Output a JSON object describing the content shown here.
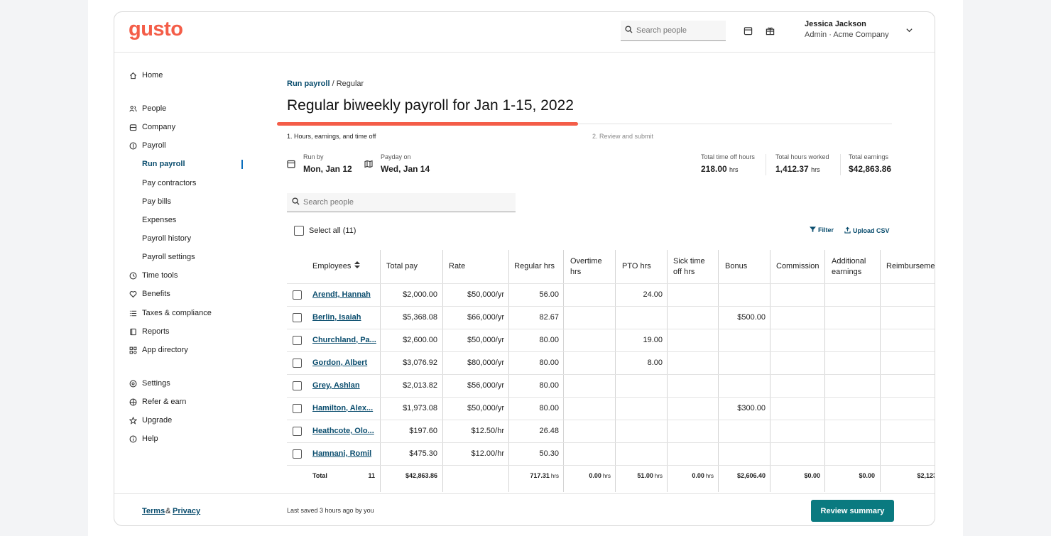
{
  "app": {
    "logo": "gusto"
  },
  "header": {
    "search_placeholder": "Search people",
    "user_name": "Jessica Jackson",
    "user_role": "Admin · Acme Company"
  },
  "sidebar": {
    "home": "Home",
    "people": "People",
    "company": "Company",
    "payroll": "Payroll",
    "payroll_items": [
      "Run payroll",
      "Pay contractors",
      "Pay bills",
      "Expenses",
      "Payroll history",
      "Payroll settings"
    ],
    "time_tools": "Time tools",
    "benefits": "Benefits",
    "taxes": "Taxes & compliance",
    "reports": "Reports",
    "app_directory": "App directory",
    "settings": "Settings",
    "refer": "Refer & earn",
    "upgrade": "Upgrade",
    "help": "Help"
  },
  "breadcrumb": {
    "link": "Run payroll",
    "current": "/ Regular"
  },
  "page_title": "Regular biweekly payroll for Jan 1-15, 2022",
  "progress": {
    "fraction": 0.49
  },
  "steps": [
    "1. Hours, earnings, and time off",
    "2. Review and submit"
  ],
  "meta": {
    "run_by_label": "Run by",
    "run_by_value": "Mon, Jan 12",
    "payday_label": "Payday on",
    "payday_value": "Wed, Jan 14"
  },
  "stats": {
    "time_off_label": "Total time off hours",
    "time_off_value": "218.00",
    "time_off_unit": "hrs",
    "hours_label": "Total hours worked",
    "hours_value": "1,412.37",
    "hours_unit": "hrs",
    "earnings_label": "Total earnings",
    "earnings_value": "$42,863.86"
  },
  "body_search_placeholder": "Search people",
  "select_all": "Select all (11)",
  "filter_label": "Filter",
  "upload_label": "Upload CSV",
  "table": {
    "headers": {
      "employees": "Employees",
      "total_pay": "Total pay",
      "rate": "Rate",
      "regular": "Regular hrs",
      "overtime_1": "Overtime",
      "overtime_2": "hrs",
      "pto": "PTO hrs",
      "sick_1": "Sick time",
      "sick_2": "off hrs",
      "bonus": "Bonus",
      "commission": "Commission",
      "additional_1": "Additional",
      "additional_2": "earnings",
      "reimbursement": "Reimburseme"
    },
    "rows": [
      {
        "name": "Arendt, Hannah",
        "pay": "$2,000.00",
        "rate": "$50,000/yr",
        "regular": "56.00",
        "pto": "24.00",
        "bonus": ""
      },
      {
        "name": "Berlin, Isaiah",
        "pay": "$5,368.08",
        "rate": "$66,000/yr",
        "regular": "82.67",
        "pto": "",
        "bonus": "$500.00"
      },
      {
        "name": "Churchland, Pa...",
        "pay": "$2,600.00",
        "rate": "$50,000/yr",
        "regular": "80.00",
        "pto": "19.00",
        "bonus": ""
      },
      {
        "name": "Gordon, Albert",
        "pay": "$3,076.92",
        "rate": "$80,000/yr",
        "regular": "80.00",
        "pto": "8.00",
        "bonus": ""
      },
      {
        "name": "Grey, Ashlan",
        "pay": "$2,013.82",
        "rate": "$56,000/yr",
        "regular": "80.00",
        "pto": "",
        "bonus": ""
      },
      {
        "name": "Hamilton, Alex...",
        "pay": "$1,973.08",
        "rate": "$50,000/yr",
        "regular": "80.00",
        "pto": "",
        "bonus": "$300.00"
      },
      {
        "name": "Heathcote, Olo...",
        "pay": "$197.60",
        "rate": "$12.50/hr",
        "regular": "26.48",
        "pto": "",
        "bonus": ""
      },
      {
        "name": "Hamnani, Romil",
        "pay": "$475.30",
        "rate": "$12.00/hr",
        "regular": "50.30",
        "pto": "",
        "bonus": ""
      }
    ],
    "totals": {
      "label": "Total",
      "count": "11",
      "pay": "$42,863.86",
      "regular": "717.31",
      "overtime": "0.00",
      "pto": "51.00",
      "sick": "0.00",
      "bonus": "$2,606.40",
      "commission": "$0.00",
      "additional": "$0.00",
      "reimbursement": "$2,123",
      "unit": "hrs"
    }
  },
  "footer": {
    "terms": "Terms",
    "amp": "&",
    "privacy": "Privacy",
    "saved": "Last saved 3 hours ago by you",
    "review_button": "Review summary"
  }
}
